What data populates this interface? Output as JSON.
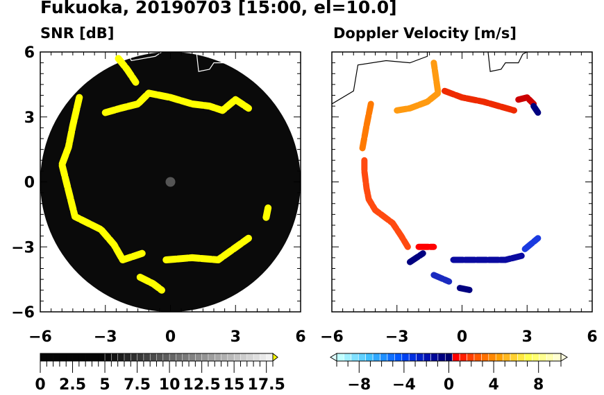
{
  "title": "Fukuoka, 20190703 [15:00, el=10.0]",
  "chart_data": [
    {
      "type": "heatmap",
      "subtitle": "SNR [dB]",
      "xlim": [
        -6,
        6
      ],
      "ylim": [
        -6,
        6
      ],
      "xticks": [
        "-6",
        "-3",
        "0",
        "3",
        "6"
      ],
      "yticks": [
        "6",
        "3",
        "0",
        "-3",
        "-6"
      ],
      "colorbar": {
        "ticks": [
          "0",
          "2.5",
          "5",
          "7.5",
          "10",
          "12.5",
          "15",
          "17.5"
        ],
        "range": [
          0,
          18
        ],
        "extend": "max",
        "over_color": "#ffff00"
      },
      "background_color": "#0a0a0a",
      "echo_segments": [
        {
          "color": "#ffff00",
          "points": [
            [
              -4.2,
              3.9
            ],
            [
              -4.5,
              2.6
            ],
            [
              -4.7,
              1.6
            ],
            [
              -5,
              0.8
            ],
            [
              -4.8,
              0
            ],
            [
              -4.6,
              -0.8
            ],
            [
              -4.4,
              -1.6
            ],
            [
              -3.2,
              -2.2
            ],
            [
              -2.6,
              -2.9
            ],
            [
              -2.2,
              -3.6
            ],
            [
              -1.3,
              -3.3
            ]
          ]
        },
        {
          "color": "#ffff00",
          "points": [
            [
              -3,
              3.2
            ],
            [
              -2.3,
              3.4
            ],
            [
              -1.5,
              3.6
            ],
            [
              -1,
              4.1
            ],
            [
              0,
              3.9
            ],
            [
              1,
              3.6
            ],
            [
              1.8,
              3.5
            ],
            [
              2.4,
              3.3
            ],
            [
              3,
              3.8
            ],
            [
              3.6,
              3.4
            ]
          ]
        },
        {
          "color": "#ffff00",
          "points": [
            [
              -2.4,
              5.7
            ],
            [
              -2,
              5.2
            ],
            [
              -1.6,
              4.6
            ]
          ]
        },
        {
          "color": "#ffff00",
          "points": [
            [
              -0.2,
              -3.6
            ],
            [
              1,
              -3.5
            ],
            [
              2.2,
              -3.6
            ],
            [
              2.9,
              -3.1
            ],
            [
              3.6,
              -2.6
            ]
          ]
        },
        {
          "color": "#ffff00",
          "points": [
            [
              -1.4,
              -4.4
            ],
            [
              -0.8,
              -4.7
            ],
            [
              -0.4,
              -5
            ]
          ]
        },
        {
          "color": "#ffff00",
          "points": [
            [
              4.5,
              -1.2
            ],
            [
              4.4,
              -1.7
            ]
          ]
        }
      ]
    },
    {
      "type": "heatmap",
      "subtitle": "Doppler Velocity [m/s]",
      "xlim": [
        -6,
        6
      ],
      "ylim": [
        -6,
        6
      ],
      "xticks": [
        "-6",
        "-3",
        "0",
        "3",
        "6"
      ],
      "colorbar": {
        "ticks": [
          "−8",
          "−4",
          "0",
          "4",
          "8"
        ],
        "range": [
          -10,
          10
        ],
        "extend": "both"
      },
      "echo_segments": [
        {
          "color": "#ff4a10",
          "points": [
            [
              -4.5,
              1
            ],
            [
              -4.5,
              0.5
            ],
            [
              -4.4,
              -0.3
            ],
            [
              -4.3,
              -0.8
            ],
            [
              -4,
              -1.3
            ],
            [
              -3.2,
              -1.9
            ],
            [
              -2.8,
              -2.5
            ],
            [
              -2.5,
              -3
            ]
          ]
        },
        {
          "color": "#ff7a00",
          "points": [
            [
              -4.2,
              3.6
            ],
            [
              -4.4,
              2.6
            ],
            [
              -4.6,
              1.5
            ]
          ]
        },
        {
          "color": "#ff9a10",
          "points": [
            [
              -3,
              3.3
            ],
            [
              -2.4,
              3.4
            ],
            [
              -1.6,
              3.7
            ],
            [
              -1.1,
              4.1
            ],
            [
              -1.3,
              5.5
            ]
          ]
        },
        {
          "color": "#ee2a00",
          "points": [
            [
              -0.8,
              4.2
            ],
            [
              0,
              3.9
            ],
            [
              1,
              3.7
            ],
            [
              1.7,
              3.5
            ],
            [
              2.4,
              3.3
            ]
          ]
        },
        {
          "color": "#cc0000",
          "points": [
            [
              2.6,
              3.8
            ],
            [
              3,
              3.9
            ],
            [
              3.3,
              3.6
            ]
          ]
        },
        {
          "color": "#000080",
          "points": [
            [
              3.3,
              3.5
            ],
            [
              3.5,
              3.2
            ]
          ]
        },
        {
          "color": "#ff0000",
          "points": [
            [
              -2,
              -3
            ],
            [
              -1.3,
              -3
            ]
          ]
        },
        {
          "color": "#000080",
          "points": [
            [
              -2.4,
              -3.7
            ],
            [
              -1.8,
              -3.3
            ]
          ]
        },
        {
          "color": "#0a0aa0",
          "points": [
            [
              -0.4,
              -3.6
            ],
            [
              0.8,
              -3.6
            ],
            [
              2,
              -3.6
            ],
            [
              2.8,
              -3.4
            ]
          ]
        },
        {
          "color": "#1a3ae0",
          "points": [
            [
              2.9,
              -3.1
            ],
            [
              3.5,
              -2.6
            ]
          ]
        },
        {
          "color": "#1a2ac0",
          "points": [
            [
              -1.3,
              -4.3
            ],
            [
              -0.6,
              -4.6
            ]
          ]
        },
        {
          "color": "#000080",
          "points": [
            [
              -0.1,
              -4.9
            ],
            [
              0.4,
              -5
            ]
          ]
        }
      ]
    }
  ]
}
